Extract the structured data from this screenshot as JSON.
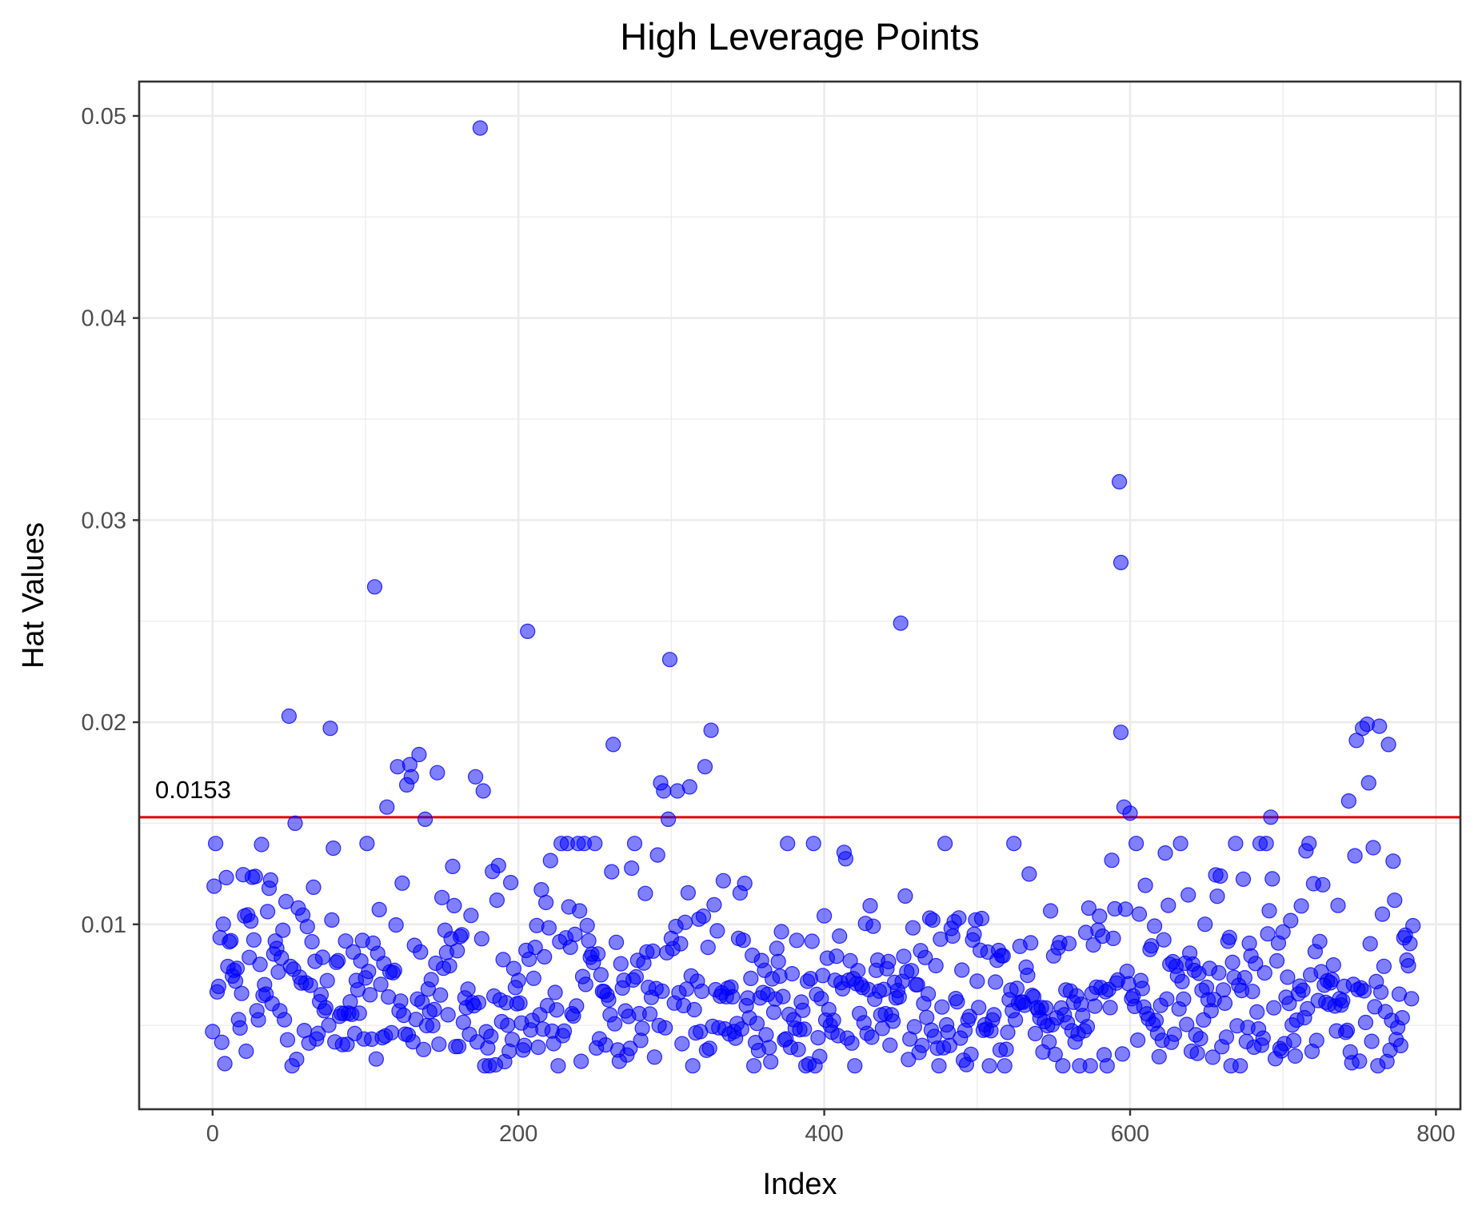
{
  "chart_data": {
    "type": "scatter",
    "title": "High Leverage Points",
    "xlabel": "Index",
    "ylabel": "Hat Values",
    "xlim": [
      -48,
      816
    ],
    "ylim": [
      0.00085,
      0.0517
    ],
    "x_ticks": [
      0,
      200,
      400,
      600,
      800
    ],
    "x_tick_labels": [
      "0",
      "200",
      "400",
      "600",
      "800"
    ],
    "y_ticks": [
      0.01,
      0.02,
      0.03,
      0.04,
      0.05
    ],
    "y_tick_labels": [
      "0.01",
      "0.02",
      "0.03",
      "0.04",
      "0.05"
    ],
    "grid": true,
    "point_color": "#0000ff",
    "point_opacity": 0.5,
    "threshold": {
      "value": 0.0153,
      "label": "0.0153",
      "color": "#e00000"
    },
    "notable_points": [
      {
        "x": 175,
        "y": 0.0494
      },
      {
        "x": 593,
        "y": 0.0319
      },
      {
        "x": 594,
        "y": 0.0279
      },
      {
        "x": 106,
        "y": 0.0267
      },
      {
        "x": 450,
        "y": 0.0249
      },
      {
        "x": 206,
        "y": 0.0245
      },
      {
        "x": 299,
        "y": 0.0231
      },
      {
        "x": 50,
        "y": 0.0203
      },
      {
        "x": 77,
        "y": 0.0197
      },
      {
        "x": 326,
        "y": 0.0196
      },
      {
        "x": 594,
        "y": 0.0195
      },
      {
        "x": 755,
        "y": 0.0199
      },
      {
        "x": 763,
        "y": 0.0198
      },
      {
        "x": 752,
        "y": 0.0197
      },
      {
        "x": 262,
        "y": 0.0189
      },
      {
        "x": 769,
        "y": 0.0189
      },
      {
        "x": 748,
        "y": 0.0191
      },
      {
        "x": 135,
        "y": 0.0184
      },
      {
        "x": 121,
        "y": 0.0178
      },
      {
        "x": 129,
        "y": 0.0179
      },
      {
        "x": 322,
        "y": 0.0178
      },
      {
        "x": 147,
        "y": 0.0175
      },
      {
        "x": 172,
        "y": 0.0173
      },
      {
        "x": 130,
        "y": 0.0173
      },
      {
        "x": 127,
        "y": 0.0169
      },
      {
        "x": 293,
        "y": 0.017
      },
      {
        "x": 312,
        "y": 0.0168
      },
      {
        "x": 304,
        "y": 0.0166
      },
      {
        "x": 295,
        "y": 0.0166
      },
      {
        "x": 177,
        "y": 0.0166
      },
      {
        "x": 756,
        "y": 0.017
      },
      {
        "x": 743,
        "y": 0.0161
      },
      {
        "x": 114,
        "y": 0.0158
      },
      {
        "x": 596,
        "y": 0.0158
      },
      {
        "x": 600,
        "y": 0.0155
      },
      {
        "x": 692,
        "y": 0.0153
      },
      {
        "x": 54,
        "y": 0.015
      },
      {
        "x": 298,
        "y": 0.0152
      },
      {
        "x": 139,
        "y": 0.0152
      }
    ],
    "bulk_distribution": {
      "n": 786,
      "typical_range": [
        0.003,
        0.014
      ],
      "median": 0.0065
    }
  }
}
